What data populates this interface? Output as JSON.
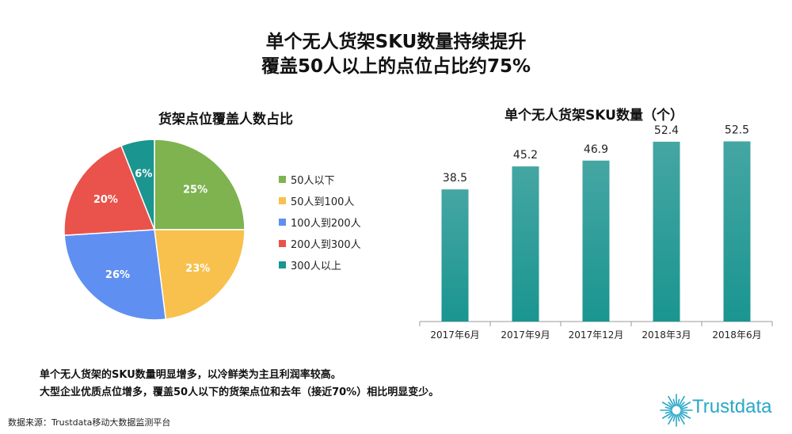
{
  "headline": {
    "line1": "单个无人货架SKU数量持续提升",
    "line2": "覆盖50人以上的点位占比约75%"
  },
  "chart_data": [
    {
      "type": "pie",
      "title": "货架点位覆盖人数占比",
      "labels": [
        "50人以下",
        "50人到100人",
        "100人到200人",
        "200人到300人",
        "300人以上"
      ],
      "values": [
        25,
        23,
        26,
        20,
        6
      ],
      "value_labels": [
        "25%",
        "23%",
        "26%",
        "20%",
        "6%"
      ],
      "colors": [
        "#7eb350",
        "#f8c04c",
        "#5f8ff1",
        "#e9534b",
        "#1a9590"
      ],
      "legend_position": "right"
    },
    {
      "type": "bar",
      "title": "单个无人货架SKU数量（个）",
      "categories": [
        "2017年6月",
        "2017年9月",
        "2017年12月",
        "2018年3月",
        "2018年6月"
      ],
      "values": [
        38.5,
        45.2,
        46.9,
        52.4,
        52.5
      ],
      "value_labels": [
        "38.5",
        "45.2",
        "46.9",
        "52.4",
        "52.5"
      ],
      "ylim": [
        0,
        60
      ],
      "bar_color": "#1a9590",
      "grid": false,
      "y_axis_visible": false
    }
  ],
  "notes": {
    "line1": "单个无人货架的SKU数量明显增多，以冷鲜类为主且利润率较高。",
    "line2": "大型企业优质点位增多，覆盖50人以下的货架点位和去年（接近70%）相比明显变少。"
  },
  "source": "数据来源：Trustdata移动大数据监测平台",
  "logo": {
    "text": "Trustdata",
    "icon": "sunburst-logo-icon"
  }
}
